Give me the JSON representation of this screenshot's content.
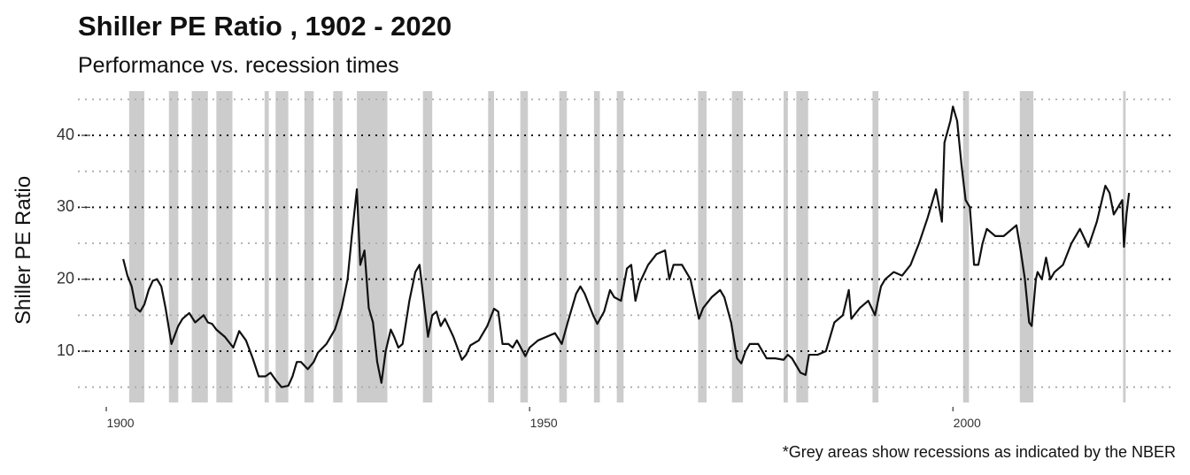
{
  "chart_data": {
    "type": "line",
    "title": "Shiller PE Ratio , 1902 - 2020",
    "subtitle": "Performance vs. recession times",
    "y_label": "Shiller PE Ratio",
    "caption": "*Grey areas show recessions as indicated by the NBER",
    "color": "#111111",
    "recession_color": "#cccccc",
    "xlim": [
      1896.65,
      2025.7
    ],
    "ylim": [
      2.87,
      46.15
    ],
    "xticks": [
      1900,
      1950,
      2000
    ],
    "yticks": [
      10,
      20,
      30,
      40
    ],
    "yminorticks": [
      5,
      15,
      25,
      35,
      45
    ],
    "grid": true,
    "recessions": [
      [
        1902.7,
        1904.5
      ],
      [
        1907.4,
        1908.5
      ],
      [
        1910.1,
        1912.0
      ],
      [
        1913.0,
        1914.9
      ],
      [
        1918.7,
        1919.2
      ],
      [
        1920.0,
        1921.5
      ],
      [
        1923.4,
        1924.5
      ],
      [
        1926.8,
        1927.9
      ],
      [
        1929.6,
        1933.2
      ],
      [
        1937.4,
        1938.5
      ],
      [
        1945.1,
        1945.8
      ],
      [
        1948.9,
        1949.8
      ],
      [
        1953.5,
        1954.4
      ],
      [
        1957.6,
        1958.3
      ],
      [
        1960.3,
        1961.1
      ],
      [
        1969.9,
        1970.9
      ],
      [
        1973.9,
        1975.2
      ],
      [
        1980.0,
        1980.5
      ],
      [
        1981.5,
        1982.9
      ],
      [
        1990.5,
        1991.2
      ],
      [
        2001.2,
        2001.9
      ],
      [
        2007.9,
        2009.5
      ],
      [
        2020.1,
        2020.4
      ]
    ],
    "x": [
      1902.0,
      1902.5,
      1903,
      1903.5,
      1904,
      1904.5,
      1905,
      1905.5,
      1906,
      1906.5,
      1907,
      1907.7,
      1908.5,
      1909,
      1909.8,
      1910.5,
      1911,
      1911.5,
      1912,
      1912.5,
      1913,
      1914,
      1915,
      1915.7,
      1916.5,
      1917.3,
      1918,
      1918.8,
      1919.4,
      1920,
      1920.7,
      1921.5,
      1922,
      1922.5,
      1923,
      1923.8,
      1924.5,
      1925,
      1926,
      1927,
      1927.8,
      1928.5,
      1929,
      1929.6,
      1930,
      1930.5,
      1931,
      1931.5,
      1932,
      1932.5,
      1933,
      1933.6,
      1934,
      1934.5,
      1935,
      1935.8,
      1936.5,
      1937,
      1937.5,
      1938,
      1938.5,
      1939,
      1939.5,
      1940,
      1941,
      1942,
      1942.5,
      1943,
      1944,
      1945,
      1945.8,
      1946.3,
      1946.8,
      1947.5,
      1948,
      1948.5,
      1949.5,
      1950,
      1951,
      1952,
      1953,
      1953.8,
      1954.5,
      1955.5,
      1956,
      1956.5,
      1957.5,
      1958,
      1958.8,
      1959.5,
      1960,
      1960.8,
      1961.5,
      1962,
      1962.5,
      1963,
      1964,
      1965,
      1966,
      1966.5,
      1967,
      1968,
      1969,
      1970,
      1970.5,
      1971.5,
      1972.5,
      1973,
      1973.8,
      1974.5,
      1975,
      1975.5,
      1976,
      1977,
      1978,
      1979,
      1980,
      1980.5,
      1981,
      1982,
      1982.6,
      1983,
      1984,
      1985,
      1986,
      1987,
      1987.7,
      1988,
      1989,
      1990,
      1990.8,
      1991.5,
      1992,
      1993,
      1994,
      1995,
      1996,
      1997,
      1998,
      1998.7,
      1999,
      1999.7,
      2000,
      2000.5,
      2001,
      2001.5,
      2002,
      2002.5,
      2003,
      2003.5,
      2004,
      2005,
      2006,
      2007,
      2007.5,
      2008,
      2008.5,
      2009,
      2009.3,
      2009.8,
      2010,
      2010.5,
      2011,
      2011.5,
      2012,
      2013,
      2014,
      2015,
      2016,
      2017,
      2018,
      2018.5,
      2019,
      2019.5,
      2020,
      2020.2,
      2020.5,
      2020.8
    ],
    "values": [
      22.8,
      20.5,
      19,
      16,
      15.5,
      16.5,
      18.5,
      19.8,
      20,
      19,
      16,
      11,
      13.5,
      14.5,
      15.3,
      14,
      14.5,
      15,
      14,
      13.8,
      13,
      12,
      10.5,
      12.8,
      11.5,
      9,
      6.5,
      6.5,
      7,
      6,
      5,
      5.2,
      6.5,
      8.5,
      8.5,
      7.5,
      8.5,
      9.8,
      11,
      13,
      16,
      20,
      26,
      32.5,
      22,
      24,
      16,
      14,
      8.5,
      5.6,
      10,
      13,
      12,
      10.5,
      11,
      17,
      21,
      22,
      17,
      12,
      15,
      15.5,
      13.5,
      14.5,
      12,
      8.8,
      9.5,
      10.8,
      11.5,
      13.5,
      15.9,
      15.5,
      11,
      11,
      10.5,
      11.5,
      9.3,
      10.5,
      11.5,
      12,
      12.5,
      11,
      14,
      18,
      19,
      18,
      15,
      13.8,
      15.5,
      18.5,
      17.5,
      17,
      21.5,
      22,
      17,
      19.5,
      22,
      23.5,
      24,
      20,
      22,
      22,
      20,
      14.5,
      16,
      17.5,
      18.5,
      17.5,
      14,
      9,
      8.3,
      10,
      11,
      11,
      9,
      9,
      8.8,
      9.5,
      9,
      7,
      6.7,
      9.5,
      9.5,
      10,
      14,
      15,
      18.5,
      14.5,
      16,
      17,
      15,
      19,
      20,
      21,
      20.5,
      22,
      25,
      28.5,
      32.5,
      28,
      39,
      42,
      44,
      42,
      36,
      31,
      30,
      22,
      22,
      25,
      27,
      26,
      26,
      27,
      27.5,
      24,
      20,
      14,
      13.5,
      20,
      21,
      20,
      23,
      20,
      21,
      22,
      25,
      27,
      24.5,
      28,
      33,
      32,
      29,
      30,
      31,
      24.5,
      29,
      32
    ]
  }
}
